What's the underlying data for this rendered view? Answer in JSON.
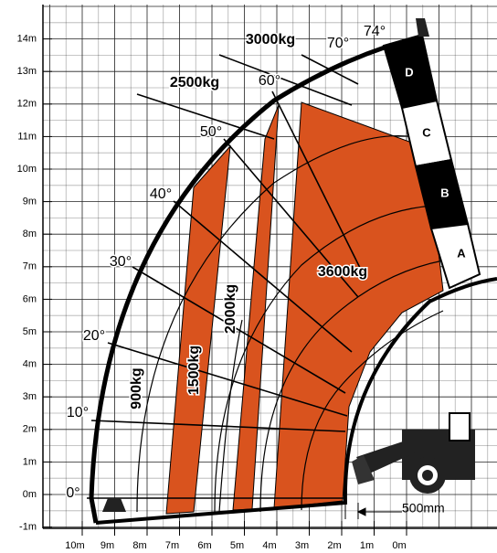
{
  "y_axis_labels": [
    "-1m",
    "0m",
    "1m",
    "2m",
    "3m",
    "4m",
    "5m",
    "6m",
    "7m",
    "8m",
    "9m",
    "10m",
    "11m",
    "12m",
    "13m",
    "14m"
  ],
  "x_axis_labels": [
    "10m",
    "9m",
    "8m",
    "7m",
    "6m",
    "5m",
    "4m",
    "3m",
    "2m",
    "1m",
    "0m"
  ],
  "angle_labels": [
    "0°",
    "10°",
    "20°",
    "30°",
    "40°",
    "50°",
    "60°",
    "70°",
    "74°"
  ],
  "load_labels": [
    "900kg",
    "1500kg",
    "2000kg",
    "2500kg",
    "3000kg",
    "3600kg"
  ],
  "boom_sections": [
    "D",
    "C",
    "B",
    "A"
  ],
  "dimension_label": "500mm"
}
